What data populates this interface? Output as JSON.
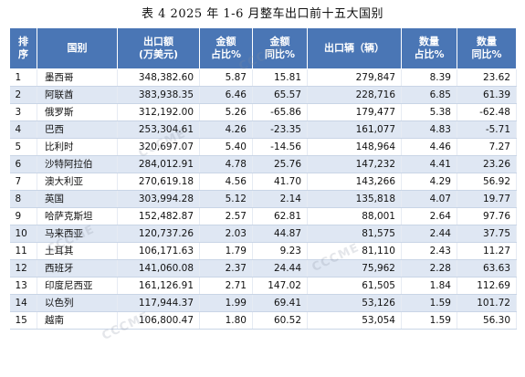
{
  "title": "表 4  2025 年 1-6 月整车出口前十五大国别",
  "columns": [
    {
      "line1": "排",
      "line2": "序"
    },
    {
      "line1": "国别",
      "line2": ""
    },
    {
      "line1": "出口额",
      "line2": "(万美元)"
    },
    {
      "line1": "金额",
      "line2": "占比%"
    },
    {
      "line1": "金额",
      "line2": "同比%"
    },
    {
      "line1": "出口辆（辆）",
      "line2": ""
    },
    {
      "line1": "数量",
      "line2": "占比%"
    },
    {
      "line1": "数量",
      "line2": "同比%"
    }
  ],
  "rows": [
    {
      "rank": "1",
      "country": "墨西哥",
      "value": "348,382.60",
      "value_share": "5.87",
      "value_yoy": "15.81",
      "units": "279,847",
      "units_share": "8.39",
      "units_yoy": "23.62"
    },
    {
      "rank": "2",
      "country": "阿联酋",
      "value": "383,938.35",
      "value_share": "6.46",
      "value_yoy": "65.57",
      "units": "228,716",
      "units_share": "6.85",
      "units_yoy": "61.39"
    },
    {
      "rank": "3",
      "country": "俄罗斯",
      "value": "312,192.00",
      "value_share": "5.26",
      "value_yoy": "-65.86",
      "units": "179,477",
      "units_share": "5.38",
      "units_yoy": "-62.48"
    },
    {
      "rank": "4",
      "country": "巴西",
      "value": "253,304.61",
      "value_share": "4.26",
      "value_yoy": "-23.35",
      "units": "161,077",
      "units_share": "4.83",
      "units_yoy": "-5.71"
    },
    {
      "rank": "5",
      "country": "比利时",
      "value": "320,697.07",
      "value_share": "5.40",
      "value_yoy": "-14.56",
      "units": "148,964",
      "units_share": "4.46",
      "units_yoy": "7.27"
    },
    {
      "rank": "6",
      "country": "沙特阿拉伯",
      "value": "284,012.91",
      "value_share": "4.78",
      "value_yoy": "25.76",
      "units": "147,232",
      "units_share": "4.41",
      "units_yoy": "23.26"
    },
    {
      "rank": "7",
      "country": "澳大利亚",
      "value": "270,619.18",
      "value_share": "4.56",
      "value_yoy": "41.70",
      "units": "143,266",
      "units_share": "4.29",
      "units_yoy": "56.92"
    },
    {
      "rank": "8",
      "country": "英国",
      "value": "303,994.28",
      "value_share": "5.12",
      "value_yoy": "2.14",
      "units": "135,818",
      "units_share": "4.07",
      "units_yoy": "19.77"
    },
    {
      "rank": "9",
      "country": "哈萨克斯坦",
      "value": "152,482.87",
      "value_share": "2.57",
      "value_yoy": "62.81",
      "units": "88,001",
      "units_share": "2.64",
      "units_yoy": "97.76"
    },
    {
      "rank": "10",
      "country": "马来西亚",
      "value": "120,737.26",
      "value_share": "2.03",
      "value_yoy": "44.87",
      "units": "81,575",
      "units_share": "2.44",
      "units_yoy": "37.75"
    },
    {
      "rank": "11",
      "country": "土耳其",
      "value": "106,171.63",
      "value_share": "1.79",
      "value_yoy": "9.23",
      "units": "81,110",
      "units_share": "2.43",
      "units_yoy": "11.27"
    },
    {
      "rank": "12",
      "country": "西班牙",
      "value": "141,060.08",
      "value_share": "2.37",
      "value_yoy": "24.44",
      "units": "75,962",
      "units_share": "2.28",
      "units_yoy": "63.63"
    },
    {
      "rank": "13",
      "country": "印度尼西亚",
      "value": "161,126.91",
      "value_share": "2.71",
      "value_yoy": "147.02",
      "units": "61,505",
      "units_share": "1.84",
      "units_yoy": "112.69"
    },
    {
      "rank": "14",
      "country": "以色列",
      "value": "117,944.37",
      "value_share": "1.99",
      "value_yoy": "69.41",
      "units": "53,126",
      "units_share": "1.59",
      "units_yoy": "101.72"
    },
    {
      "rank": "15",
      "country": "越南",
      "value": "106,800.47",
      "value_share": "1.80",
      "value_yoy": "60.52",
      "units": "53,054",
      "units_share": "1.59",
      "units_yoy": "56.30"
    }
  ],
  "watermark": {
    "logo_text": "CCCME",
    "cn_text": "中国机电产品进出口商会"
  },
  "colors": {
    "header_bg": "#4a76b5",
    "band": "#dfe7f3"
  }
}
